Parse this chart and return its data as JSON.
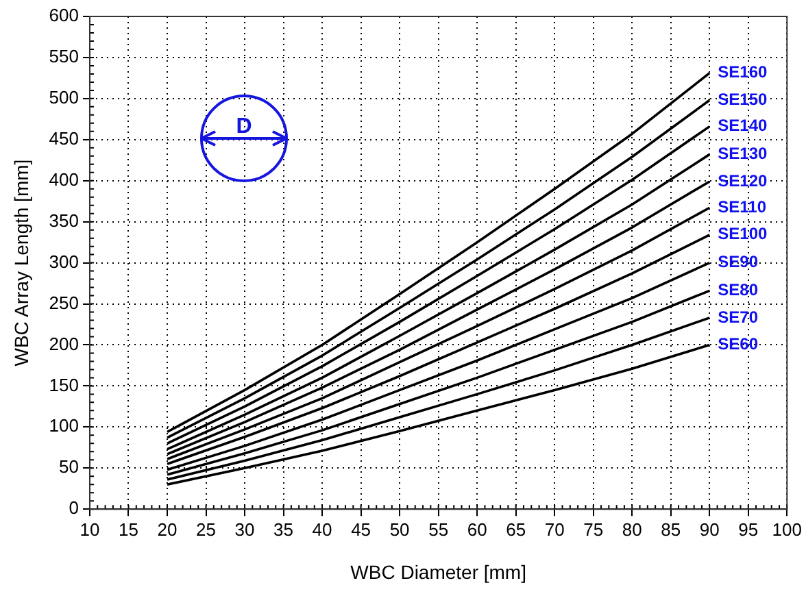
{
  "chart_data": {
    "type": "line",
    "xlabel": "WBC Diameter [mm]",
    "ylabel": "WBC Array Length [mm]",
    "xlim": [
      10,
      100
    ],
    "xticks": [
      10,
      15,
      20,
      25,
      30,
      35,
      40,
      45,
      50,
      55,
      60,
      65,
      70,
      75,
      80,
      85,
      90,
      95,
      100
    ],
    "ylim": [
      0,
      600
    ],
    "yticks": [
      0,
      50,
      100,
      150,
      200,
      250,
      300,
      350,
      400,
      450,
      500,
      550,
      600
    ],
    "grid": true,
    "legend": false,
    "marker": "none",
    "line_style": "solid",
    "x": [
      20,
      30,
      40,
      50,
      60,
      70,
      80,
      90
    ],
    "annotations": [
      "D"
    ],
    "series": [
      {
        "name": "SE160",
        "color": "#000000",
        "values": [
          94,
          145,
          200,
          262,
          325,
          390,
          457,
          531
        ]
      },
      {
        "name": "SE150",
        "color": "#000000",
        "values": [
          87,
          135,
          187,
          245,
          304,
          365,
          429,
          498
        ]
      },
      {
        "name": "SE140",
        "color": "#000000",
        "values": [
          80,
          125,
          174,
          228,
          284,
          341,
          401,
          466
        ]
      },
      {
        "name": "SE130",
        "color": "#000000",
        "values": [
          73,
          115,
          160,
          211,
          263,
          316,
          371,
          432
        ]
      },
      {
        "name": "SE120",
        "color": "#000000",
        "values": [
          67,
          106,
          148,
          194,
          243,
          292,
          343,
          399
        ]
      },
      {
        "name": "SE110",
        "color": "#000000",
        "values": [
          61,
          97,
          135,
          179,
          223,
          268,
          315,
          367
        ]
      },
      {
        "name": "SE100",
        "color": "#000000",
        "values": [
          55,
          88,
          123,
          162,
          203,
          244,
          287,
          334
        ]
      },
      {
        "name": "SE90",
        "color": "#000000",
        "values": [
          48,
          77,
          109,
          145,
          181,
          219,
          257,
          300
        ]
      },
      {
        "name": "SE80",
        "color": "#000000",
        "values": [
          42,
          68,
          96,
          128,
          160,
          194,
          228,
          266
        ]
      },
      {
        "name": "SE70",
        "color": "#000000",
        "values": [
          36,
          59,
          84,
          112,
          140,
          169,
          200,
          233
        ]
      },
      {
        "name": "SE60",
        "color": "#000000",
        "values": [
          30,
          50,
          71,
          95,
          120,
          145,
          171,
          200
        ]
      }
    ]
  }
}
